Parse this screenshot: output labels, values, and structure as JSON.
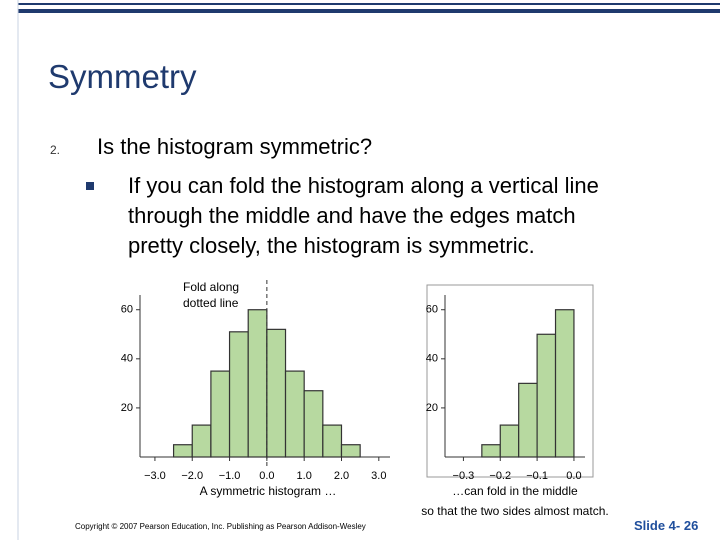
{
  "title": "Symmetry",
  "list": {
    "number": "2.",
    "text": "Is the histogram symmetric?",
    "sub": [
      "If you can fold the histogram along a vertical line",
      "through the middle and have the edges match",
      "pretty closely, the histogram is symmetric."
    ]
  },
  "chart_data": [
    {
      "type": "histogram",
      "color": "#b7d9a0",
      "bins": [
        -2.5,
        -2.0,
        -1.5,
        -1.0,
        -0.5,
        0.0,
        0.5,
        1.0,
        1.5,
        2.0,
        2.5
      ],
      "values": [
        5,
        13,
        35,
        51,
        60,
        52,
        35,
        27,
        13,
        5
      ],
      "xlim": [
        -3.4,
        3.3
      ],
      "xticks": [
        {
          "value": -3,
          "label": "−3.0"
        },
        {
          "value": -2,
          "label": "−2.0"
        },
        {
          "value": -1,
          "label": "−1.0"
        },
        {
          "value": 0,
          "label": "0.0"
        },
        {
          "value": 1,
          "label": "1.0"
        },
        {
          "value": 2,
          "label": "2.0"
        },
        {
          "value": 3,
          "label": "3.0"
        }
      ],
      "ylim": [
        0,
        66
      ],
      "yticks": [
        20,
        40,
        60
      ],
      "annotation": [
        "Fold along",
        "dotted line"
      ],
      "caption": [
        "A symmetric histogram …"
      ]
    },
    {
      "type": "histogram",
      "color": "#b7d9a0",
      "bins": [
        -0.25,
        -0.2,
        -0.15,
        -0.1,
        -0.05,
        0.0
      ],
      "values": [
        5,
        13,
        30,
        50,
        60
      ],
      "xlim": [
        -0.35,
        0.03
      ],
      "xticks": [
        {
          "value": -0.3,
          "label": "−0.3"
        },
        {
          "value": -0.2,
          "label": "−0.2"
        },
        {
          "value": -0.1,
          "label": "−0.1"
        },
        {
          "value": 0,
          "label": "0.0"
        }
      ],
      "ylim": [
        0,
        66
      ],
      "yticks": [
        20,
        40,
        60
      ],
      "caption": [
        "…can fold in the middle",
        "so that the two sides almost match."
      ]
    }
  ],
  "footer": {
    "copyright": "Copyright © 2007 Pearson Education, Inc. Publishing as Pearson Addison-Wesley",
    "slide": "Slide 4- 26"
  }
}
